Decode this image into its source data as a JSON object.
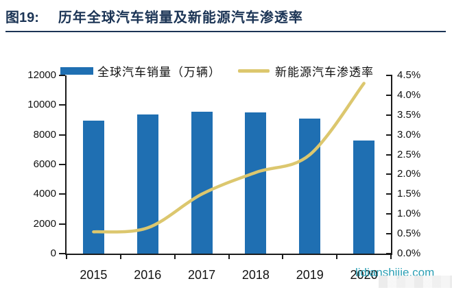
{
  "figure": {
    "label": "图19:",
    "title": "历年全球汽车销量及新能源汽车渗透率"
  },
  "watermark": {
    "text": "lidianshijie.com",
    "color": "#2a9fb4"
  },
  "colors": {
    "bar": "#1f6fb2",
    "line": "#dcc76e",
    "title": "#1b3455",
    "axis": "#1a1a1a",
    "text": "#111111"
  },
  "chart_data": {
    "type": "bar+line combo",
    "categories": [
      "2015",
      "2016",
      "2017",
      "2018",
      "2019",
      "2020"
    ],
    "series": [
      {
        "name": "全球汽车销量（万辆）",
        "type": "bar",
        "axis": "left",
        "unit": "万辆",
        "values": [
          8950,
          9380,
          9550,
          9500,
          9100,
          7600
        ]
      },
      {
        "name": "新能源汽车渗透率",
        "type": "line",
        "axis": "right",
        "unit": "%",
        "values": [
          0.55,
          0.65,
          1.5,
          2.05,
          2.5,
          4.3
        ]
      }
    ],
    "left_axis": {
      "min": 0,
      "max": 12000,
      "step": 2000,
      "tick_labels": [
        "0",
        "2000",
        "4000",
        "6000",
        "8000",
        "10000",
        "12000"
      ]
    },
    "right_axis": {
      "min": 0,
      "max": 4.5,
      "step": 0.5,
      "tick_labels": [
        "0.0%",
        "0.5%",
        "1.0%",
        "1.5%",
        "2.0%",
        "2.5%",
        "3.0%",
        "3.5%",
        "4.0%",
        "4.5%"
      ]
    },
    "legend_position": "top",
    "grid": false
  }
}
